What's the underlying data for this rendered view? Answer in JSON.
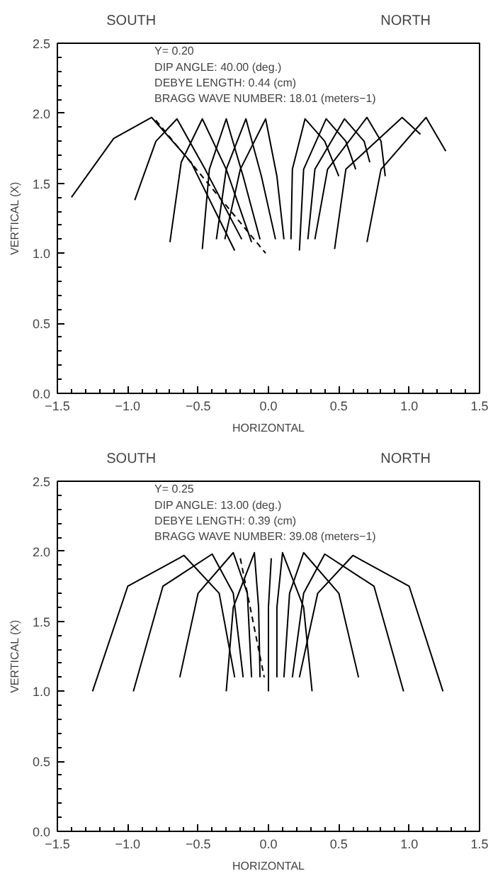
{
  "chart_data": [
    {
      "type": "line",
      "xlabel": "HORIZONTAL",
      "ylabel": "VERTICAL (X)",
      "annotations": [
        "SOUTH",
        "NORTH",
        "Y= 0.20",
        "DIP ANGLE: 40.00 (deg.)",
        "DEBYE LENGTH:  0.44 (cm)",
        "BRAGG WAVE NUMBER: 18.01 (meters−1)"
      ],
      "xlim": [
        -1.5,
        1.5
      ],
      "ylim": [
        0,
        2.5
      ],
      "xticks": [
        {
          "value": -1.5,
          "label": "−1.5"
        },
        {
          "value": -1.0,
          "label": "−1.0"
        },
        {
          "value": -0.5,
          "label": "−0.5"
        },
        {
          "value": 0,
          "label": "0.0"
        },
        {
          "value": 0.5,
          "label": "0.5"
        },
        {
          "value": 1.0,
          "label": "1.0"
        },
        {
          "value": 1.5,
          "label": "1.5"
        }
      ],
      "yticks": [
        {
          "value": 0,
          "label": "0.0"
        },
        {
          "value": 0.5,
          "label": "0.5"
        },
        {
          "value": 1.0,
          "label": "1.0"
        },
        {
          "value": 1.5,
          "label": "1.5"
        },
        {
          "value": 2.0,
          "label": "2.0"
        },
        {
          "value": 2.5,
          "label": "2.5"
        }
      ],
      "grid": false,
      "line_style": "solid",
      "series": [
        {
          "color": "#000000",
          "x": [
            -1.4,
            -1.1,
            -0.83,
            -0.55,
            -0.24
          ],
          "values": [
            1.4,
            1.82,
            1.97,
            1.65,
            1.02
          ]
        },
        {
          "color": "#000000",
          "x": [
            -0.95,
            -0.8,
            -0.65,
            -0.45,
            -0.19
          ],
          "values": [
            1.38,
            1.8,
            1.96,
            1.6,
            1.1
          ]
        },
        {
          "color": "#000000",
          "x": [
            -0.7,
            -0.62,
            -0.47,
            -0.3,
            -0.12
          ],
          "values": [
            1.08,
            1.65,
            1.96,
            1.6,
            1.08
          ]
        },
        {
          "color": "#000000",
          "x": [
            -0.47,
            -0.42,
            -0.3,
            -0.18,
            -0.06
          ],
          "values": [
            1.03,
            1.6,
            1.96,
            1.55,
            1.1
          ]
        },
        {
          "color": "#000000",
          "x": [
            -0.37,
            -0.3,
            -0.16,
            -0.05,
            0.05
          ],
          "values": [
            1.1,
            1.6,
            1.96,
            1.55,
            1.1
          ]
        },
        {
          "color": "#000000",
          "x": [
            -0.31,
            -0.2,
            -0.02,
            0.06,
            0.11
          ],
          "values": [
            1.1,
            1.6,
            1.96,
            1.55,
            1.1
          ]
        },
        {
          "color": "#000000",
          "x": [
            0.16,
            0.17,
            0.26,
            0.4,
            0.5
          ],
          "values": [
            1.1,
            1.6,
            1.96,
            1.8,
            1.55
          ]
        },
        {
          "color": "#000000",
          "x": [
            0.22,
            0.25,
            0.41,
            0.55,
            0.62
          ],
          "values": [
            1.02,
            1.6,
            1.96,
            1.8,
            1.6
          ]
        },
        {
          "color": "#000000",
          "x": [
            0.28,
            0.33,
            0.54,
            0.68,
            0.72
          ],
          "values": [
            1.1,
            1.6,
            1.96,
            1.8,
            1.65
          ]
        },
        {
          "color": "#000000",
          "x": [
            0.33,
            0.42,
            0.7,
            0.8,
            0.83
          ],
          "values": [
            1.1,
            1.6,
            1.97,
            1.8,
            1.55
          ]
        },
        {
          "color": "#000000",
          "x": [
            0.47,
            0.55,
            0.95,
            1.08
          ],
          "values": [
            1.03,
            1.6,
            1.97,
            1.85
          ]
        },
        {
          "color": "#000000",
          "x": [
            0.7,
            0.8,
            1.12,
            1.26
          ],
          "values": [
            1.08,
            1.6,
            1.97,
            1.73
          ]
        },
        {
          "color": "#000000",
          "line_style": "dashed",
          "x": [
            -0.8,
            -0.02
          ],
          "values": [
            1.95,
            1.0
          ]
        }
      ]
    },
    {
      "type": "line",
      "xlabel": "HORIZONTAL",
      "ylabel": "VERTICAL (X)",
      "annotations": [
        "SOUTH",
        "NORTH",
        "Y= 0.25",
        "DIP ANGLE: 13.00 (deg.)",
        "DEBYE LENGTH:  0.39 (cm)",
        "BRAGG WAVE NUMBER: 39.08 (meters−1)"
      ],
      "xlim": [
        -1.5,
        1.5
      ],
      "ylim": [
        0,
        2.5
      ],
      "xticks": [
        {
          "value": -1.5,
          "label": "−1.5"
        },
        {
          "value": -1.0,
          "label": "−1.0"
        },
        {
          "value": -0.5,
          "label": "−0.5"
        },
        {
          "value": 0,
          "label": "0.0"
        },
        {
          "value": 0.5,
          "label": "0.5"
        },
        {
          "value": 1.0,
          "label": "1.0"
        },
        {
          "value": 1.5,
          "label": "1.5"
        }
      ],
      "yticks": [
        {
          "value": 0,
          "label": "0.0"
        },
        {
          "value": 0.5,
          "label": "0.5"
        },
        {
          "value": 1.0,
          "label": "1.0"
        },
        {
          "value": 1.5,
          "label": "1.5"
        },
        {
          "value": 2.0,
          "label": "2.0"
        },
        {
          "value": 2.5,
          "label": "2.5"
        }
      ],
      "grid": false,
      "line_style": "solid",
      "series": [
        {
          "color": "#000000",
          "x": [
            -1.25,
            -1.0,
            -0.6,
            -0.35,
            -0.24
          ],
          "values": [
            1.0,
            1.75,
            1.97,
            1.7,
            1.1
          ]
        },
        {
          "color": "#000000",
          "x": [
            -0.96,
            -0.75,
            -0.4,
            -0.25,
            -0.18
          ],
          "values": [
            1.0,
            1.75,
            1.98,
            1.7,
            1.1
          ]
        },
        {
          "color": "#000000",
          "x": [
            -0.63,
            -0.5,
            -0.25,
            -0.15,
            -0.12
          ],
          "values": [
            1.1,
            1.7,
            1.99,
            1.7,
            1.1
          ]
        },
        {
          "color": "#000000",
          "x": [
            -0.3,
            -0.25,
            -0.1,
            -0.07,
            -0.06
          ],
          "values": [
            1.0,
            1.6,
            1.99,
            1.6,
            1.1
          ]
        },
        {
          "color": "#000000",
          "x": [
            0,
            0,
            0.02
          ],
          "values": [
            1.0,
            1.6,
            1.95
          ]
        },
        {
          "color": "#000000",
          "x": [
            0.31,
            0.25,
            0.1,
            0.06,
            0.06
          ],
          "values": [
            1.0,
            1.6,
            1.99,
            1.6,
            1.1
          ]
        },
        {
          "color": "#000000",
          "x": [
            0.64,
            0.5,
            0.25,
            0.15,
            0.11
          ],
          "values": [
            1.1,
            1.7,
            1.99,
            1.7,
            1.1
          ]
        },
        {
          "color": "#000000",
          "x": [
            0.96,
            0.75,
            0.4,
            0.25,
            0.17
          ],
          "values": [
            1.0,
            1.75,
            1.98,
            1.7,
            1.1
          ]
        },
        {
          "color": "#000000",
          "x": [
            1.24,
            1.0,
            0.6,
            0.35,
            0.22
          ],
          "values": [
            1.0,
            1.75,
            1.97,
            1.7,
            1.1
          ]
        },
        {
          "color": "#000000",
          "line_style": "dashed",
          "x": [
            -0.2,
            -0.03
          ],
          "values": [
            1.95,
            1.1
          ]
        }
      ]
    }
  ]
}
